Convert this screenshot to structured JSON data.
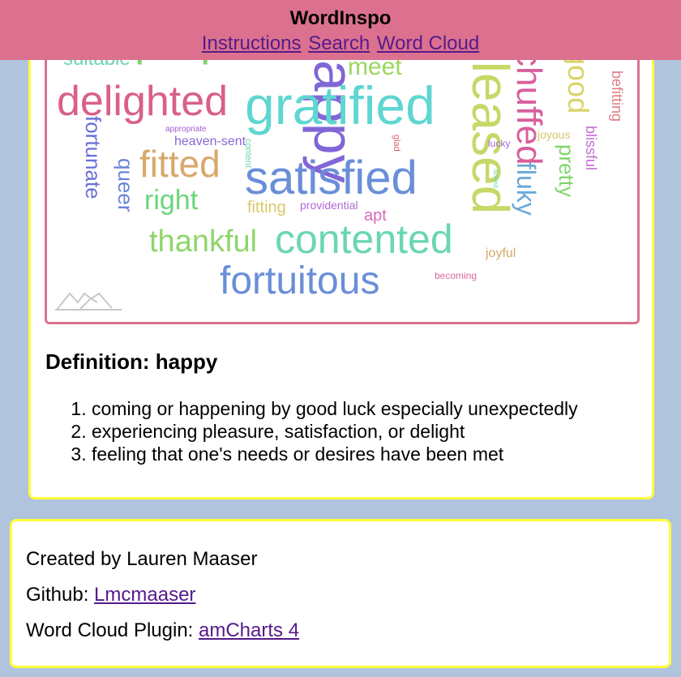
{
  "header": {
    "title": "WordInspo",
    "nav": {
      "instructions": "Instructions",
      "search": "Search",
      "word_cloud": "Word Cloud"
    }
  },
  "word_cloud": {
    "logo_icon": "amcharts-logo-icon",
    "words": [
      {
        "text": "suitable",
        "color": "#6bd6b0"
      },
      {
        "text": "proper",
        "color": "#7fd56a"
      },
      {
        "text": "happy",
        "color": "#8066d6"
      },
      {
        "text": "meet",
        "color": "#9bd65e"
      },
      {
        "text": "pleased",
        "color": "#c6d866"
      },
      {
        "text": "chuffed",
        "color": "#d85f9b"
      },
      {
        "text": "good",
        "color": "#d8d46a"
      },
      {
        "text": "befitting",
        "color": "#e07a84"
      },
      {
        "text": "delighted",
        "color": "#d96088"
      },
      {
        "text": "gratified",
        "color": "#5fd6d1"
      },
      {
        "text": "appropriate",
        "color": "#a05fd6"
      },
      {
        "text": "heaven-sent",
        "color": "#8a66d6"
      },
      {
        "text": "fortunate",
        "color": "#6870d6"
      },
      {
        "text": "content",
        "color": "#6bd6a6"
      },
      {
        "text": "glad",
        "color": "#d66a6a"
      },
      {
        "text": "lucky",
        "color": "#a26ad6"
      },
      {
        "text": "joyous",
        "color": "#d8c66a"
      },
      {
        "text": "blissful",
        "color": "#c46ad6"
      },
      {
        "text": "fitted",
        "color": "#d8a86a"
      },
      {
        "text": "satisfied",
        "color": "#6a8ed8"
      },
      {
        "text": "tickled",
        "color": "#6ad6a0"
      },
      {
        "text": "fluky",
        "color": "#6aa8d8"
      },
      {
        "text": "pretty",
        "color": "#7fd66a"
      },
      {
        "text": "queer",
        "color": "#6a84d8"
      },
      {
        "text": "right",
        "color": "#6ad67a"
      },
      {
        "text": "fitting",
        "color": "#d8c86a"
      },
      {
        "text": "providential",
        "color": "#b06ad6"
      },
      {
        "text": "apt",
        "color": "#d66ab8"
      },
      {
        "text": "thankful",
        "color": "#8ed66a"
      },
      {
        "text": "contented",
        "color": "#6ad6b4"
      },
      {
        "text": "joyful",
        "color": "#d8a86a"
      },
      {
        "text": "fortuitous",
        "color": "#6a8ed8"
      },
      {
        "text": "becoming",
        "color": "#d66a9c"
      }
    ]
  },
  "definition": {
    "title": "Definition: happy",
    "items": [
      "coming or happening by good luck especially unexpectedly",
      "experiencing pleasure, satisfaction, or delight",
      "feeling that one's needs or desires have been met"
    ]
  },
  "footer": {
    "created_by": "Created by Lauren Maaser",
    "github_label": "Github: ",
    "github_link": "Lmcmaaser",
    "plugin_label": "Word Cloud Plugin: ",
    "plugin_link": "amCharts 4"
  },
  "colors": {
    "header_bg": "#db718e",
    "page_bg": "#b0c4de",
    "card_border": "#ffff3a",
    "link": "#551a8b"
  }
}
